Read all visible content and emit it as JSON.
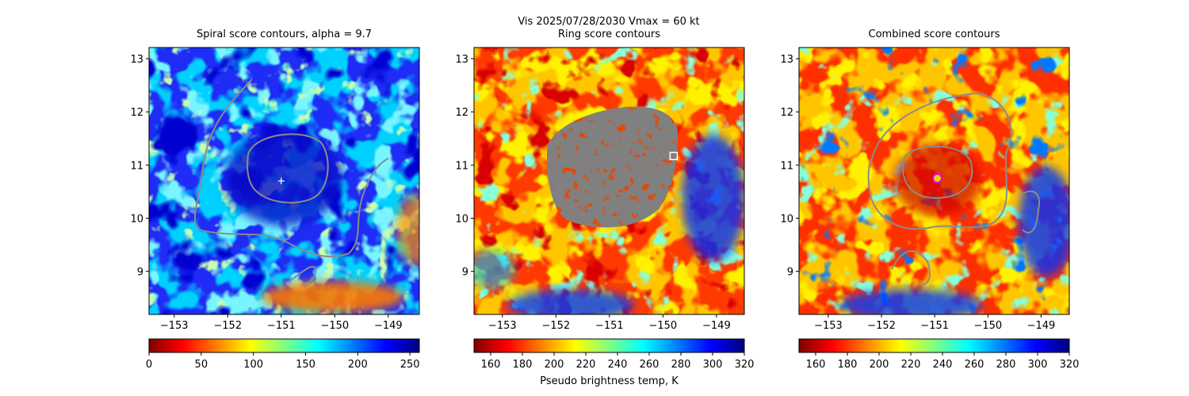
{
  "figure_title": "Vis  2025/07/28/2030    Vmax = 60 kt",
  "chart_data": [
    {
      "type": "heatmap",
      "title": "Spiral score contours, alpha =  9.7",
      "xlim": [
        -153.47,
        -148.42
      ],
      "ylim": [
        8.19,
        13.21
      ],
      "xticks": [
        {
          "value": -153,
          "label": "−153"
        },
        {
          "value": -152,
          "label": "−152"
        },
        {
          "value": -151,
          "label": "−151"
        },
        {
          "value": -150,
          "label": "−150"
        },
        {
          "value": -149,
          "label": "−149"
        }
      ],
      "yticks": [
        9,
        10,
        11,
        12,
        13
      ],
      "marker": {
        "shape": "plus",
        "x": -151.0,
        "y": 10.7,
        "color": "#ffffff"
      },
      "colorbar": {
        "lim": [
          0,
          259
        ],
        "ticks": [
          0,
          50,
          100,
          150,
          200,
          250
        ],
        "colors": [
          "#800000",
          "#ff0000",
          "#ff8000",
          "#ffff00",
          "#80ff80",
          "#00ffff",
          "#0080ff",
          "#0000ff",
          "#000080"
        ]
      }
    },
    {
      "type": "heatmap",
      "title": "Ring score contours",
      "xlim": [
        -153.53,
        -148.48
      ],
      "ylim": [
        8.19,
        13.21
      ],
      "xticks": [
        {
          "value": -153,
          "label": "−153"
        },
        {
          "value": -152,
          "label": "−152"
        },
        {
          "value": -151,
          "label": "−151"
        },
        {
          "value": -150,
          "label": "−150"
        },
        {
          "value": -149,
          "label": "−149"
        }
      ],
      "yticks": [
        9,
        10,
        11,
        12,
        13
      ],
      "marker": {
        "shape": "square",
        "x": -149.8,
        "y": 11.17,
        "color": "#ffffff"
      },
      "colorbar": {
        "lim": [
          149.5,
          320
        ],
        "ticks": [
          160,
          180,
          200,
          220,
          240,
          260,
          280,
          300,
          320
        ],
        "colors": [
          "#800000",
          "#ff0000",
          "#ff8000",
          "#ffff00",
          "#80ff80",
          "#00ffff",
          "#0080ff",
          "#0000ff",
          "#000080"
        ],
        "label": "Pseudo brightness temp, K"
      }
    },
    {
      "type": "heatmap",
      "title": "Combined score contours",
      "xlim": [
        -153.55,
        -148.47
      ],
      "ylim": [
        8.19,
        13.21
      ],
      "xticks": [
        {
          "value": -153,
          "label": "−153"
        },
        {
          "value": -152,
          "label": "−152"
        },
        {
          "value": -151,
          "label": "−151"
        },
        {
          "value": -150,
          "label": "−150"
        },
        {
          "value": -149,
          "label": "−149"
        }
      ],
      "yticks": [
        9,
        10,
        11,
        12,
        13
      ],
      "marker": {
        "shape": "circle",
        "x": -150.95,
        "y": 10.75,
        "color": "#e000e0"
      },
      "colorbar": {
        "lim": [
          149.5,
          320
        ],
        "ticks": [
          160,
          180,
          200,
          220,
          240,
          260,
          280,
          300,
          320
        ],
        "colors": [
          "#800000",
          "#ff0000",
          "#ff8000",
          "#ffff00",
          "#80ff80",
          "#00ffff",
          "#0080ff",
          "#0000ff",
          "#000080"
        ]
      }
    }
  ]
}
